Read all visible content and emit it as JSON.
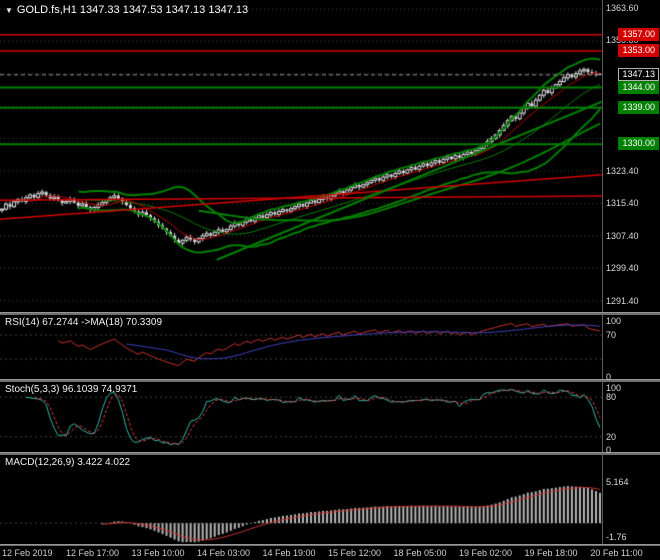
{
  "title": {
    "dropdown_icon": "▼",
    "text": "GOLD.fs,H1 1347.33 1347.53 1347.13 1347.13"
  },
  "chart_data": {
    "type": "candlestick",
    "symbol": "GOLD.fs",
    "timeframe": "H1",
    "current_bar": {
      "open": 1347.33,
      "high": 1347.53,
      "low": 1347.13,
      "close": 1347.13
    },
    "price_range": {
      "min": 1288.6,
      "max": 1365.6
    },
    "grid": {
      "start": 1291.4,
      "step": 8,
      "count": 10
    },
    "x_labels": [
      "12 Feb 2019",
      "12 Feb 17:00",
      "13 Feb 10:00",
      "14 Feb 03:00",
      "14 Feb 19:00",
      "15 Feb 12:00",
      "18 Feb 05:00",
      "19 Feb 02:00",
      "19 Feb 18:00",
      "20 Feb 11:00"
    ],
    "y_tick_labels": [
      {
        "label": "1363.60",
        "price": 1363.6
      },
      {
        "label": "1355.80",
        "price": 1355.8
      },
      {
        "label": "1323.40",
        "price": 1323.4
      },
      {
        "label": "1315.40",
        "price": 1315.4
      },
      {
        "label": "1307.40",
        "price": 1307.4
      },
      {
        "label": "1299.40",
        "price": 1299.4
      },
      {
        "label": "1291.40",
        "price": 1291.4
      }
    ],
    "closes": [
      1314.0,
      1315.2,
      1314.6,
      1315.8,
      1316.4,
      1315.9,
      1316.8,
      1317.5,
      1316.9,
      1317.8,
      1318.2,
      1317.4,
      1316.6,
      1317.0,
      1316.2,
      1315.5,
      1315.9,
      1316.4,
      1315.6,
      1314.8,
      1315.3,
      1314.5,
      1313.8,
      1314.4,
      1315.0,
      1315.6,
      1316.2,
      1316.8,
      1317.3,
      1316.6,
      1315.8,
      1315.0,
      1314.2,
      1313.4,
      1312.6,
      1313.2,
      1312.5,
      1311.7,
      1310.9,
      1310.0,
      1309.2,
      1308.3,
      1307.4,
      1306.4,
      1305.6,
      1306.3,
      1307.0,
      1306.5,
      1305.9,
      1306.7,
      1307.4,
      1308.0,
      1307.5,
      1308.3,
      1308.9,
      1308.4,
      1309.0,
      1309.8,
      1310.5,
      1310.0,
      1310.8,
      1311.5,
      1311.0,
      1311.8,
      1312.4,
      1311.9,
      1312.6,
      1313.2,
      1312.7,
      1313.4,
      1313.9,
      1313.5,
      1314.1,
      1314.6,
      1315.2,
      1314.7,
      1315.5,
      1316.1,
      1315.6,
      1316.4,
      1317.0,
      1316.5,
      1317.3,
      1317.9,
      1318.4,
      1317.9,
      1318.7,
      1319.3,
      1319.9,
      1319.4,
      1320.0,
      1320.5,
      1321.1,
      1321.6,
      1321.1,
      1321.9,
      1322.5,
      1322.0,
      1322.8,
      1323.4,
      1322.9,
      1323.7,
      1324.3,
      1323.8,
      1324.6,
      1325.2,
      1324.7,
      1325.4,
      1326.0,
      1325.5,
      1326.3,
      1326.9,
      1326.4,
      1327.2,
      1326.7,
      1327.5,
      1328.1,
      1327.6,
      1328.4,
      1329.0,
      1329.9,
      1330.7,
      1331.4,
      1332.3,
      1333.4,
      1334.6,
      1335.8,
      1336.9,
      1336.3,
      1337.7,
      1338.9,
      1340.1,
      1339.4,
      1340.9,
      1342.1,
      1343.3,
      1342.7,
      1343.9,
      1344.7,
      1345.5,
      1346.4,
      1347.2,
      1346.6,
      1347.4,
      1348.1,
      1348.5,
      1347.8,
      1347.5,
      1347.33,
      1347.13
    ],
    "levels": [
      {
        "label": "1357.00",
        "price": 1357.0,
        "color": "#d40000",
        "width": 1.5
      },
      {
        "label": "1353.00",
        "price": 1353.0,
        "color": "#d40000",
        "width": 1.5
      },
      {
        "label": "1344.00",
        "price": 1344.0,
        "color": "#008000",
        "width": 2
      },
      {
        "label": "1339.00",
        "price": 1339.0,
        "color": "#008000",
        "width": 2
      },
      {
        "label": "1330.00",
        "price": 1330.0,
        "color": "#008000",
        "width": 2
      }
    ],
    "current_price": {
      "label": "1347.13",
      "price": 1347.13
    },
    "trendlines": [
      {
        "color": "#d40000",
        "width": 1.5,
        "x1": 0.0,
        "p1": 1311.5,
        "x2": 1.0,
        "p2": 1322.5
      },
      {
        "color": "#d40000",
        "width": 1.5,
        "x1": 0.0,
        "p1": 1316.2,
        "x2": 1.0,
        "p2": 1317.2
      },
      {
        "color": "#008000",
        "width": 2,
        "x1": 0.36,
        "p1": 1301.5,
        "x2": 1.0,
        "p2": 1340.5
      }
    ],
    "indicators": {
      "rsi": {
        "label": "RSI(14) 67.2744 ->MA(18) 70.3309",
        "period": 14,
        "ma_period": 18,
        "levels": [
          30,
          70
        ],
        "scale_labels": [
          {
            "label": "100",
            "value": 100
          },
          {
            "label": "70",
            "value": 70
          },
          {
            "label": "0",
            "value": 0
          }
        ],
        "range": {
          "min": 0,
          "max": 100
        }
      },
      "stoch": {
        "label": "Stoch(5,3,3) 96.1039 74.9371",
        "k": 5,
        "slow": 3,
        "d": 3,
        "levels": [
          20,
          80
        ],
        "scale_labels": [
          {
            "label": "100",
            "value": 100
          },
          {
            "label": "80",
            "value": 80
          },
          {
            "label": "20",
            "value": 20
          },
          {
            "label": "0",
            "value": 0
          }
        ],
        "range": {
          "min": 0,
          "max": 100
        }
      },
      "macd": {
        "label": "MACD(12,26,9) 3.422 4.022",
        "fast": 12,
        "slow": 26,
        "signal": 9,
        "scale_labels": [
          {
            "label": "5.164",
            "value": 5.164
          },
          {
            "label": "-1.76",
            "value": -1.76
          }
        ],
        "range": {
          "min": -2.6,
          "max": 8.5
        }
      }
    },
    "colors": {
      "background": "#000000",
      "grid": "#3f3f3f",
      "candle": "#d9d9d9",
      "bollinger": "#008000",
      "ma_fast": "#c00000",
      "ma_slow": "#008000",
      "level_red": "#d40000",
      "level_green": "#008000",
      "rsi": "#c83232",
      "rsi_ma": "#4040c0",
      "stoch_main": "#2fb8ac",
      "stoch_signal": "#e04040",
      "macd_hist": "#b8b8b8",
      "macd_signal": "#c83232",
      "axis_text": "#d8d8d8"
    }
  }
}
